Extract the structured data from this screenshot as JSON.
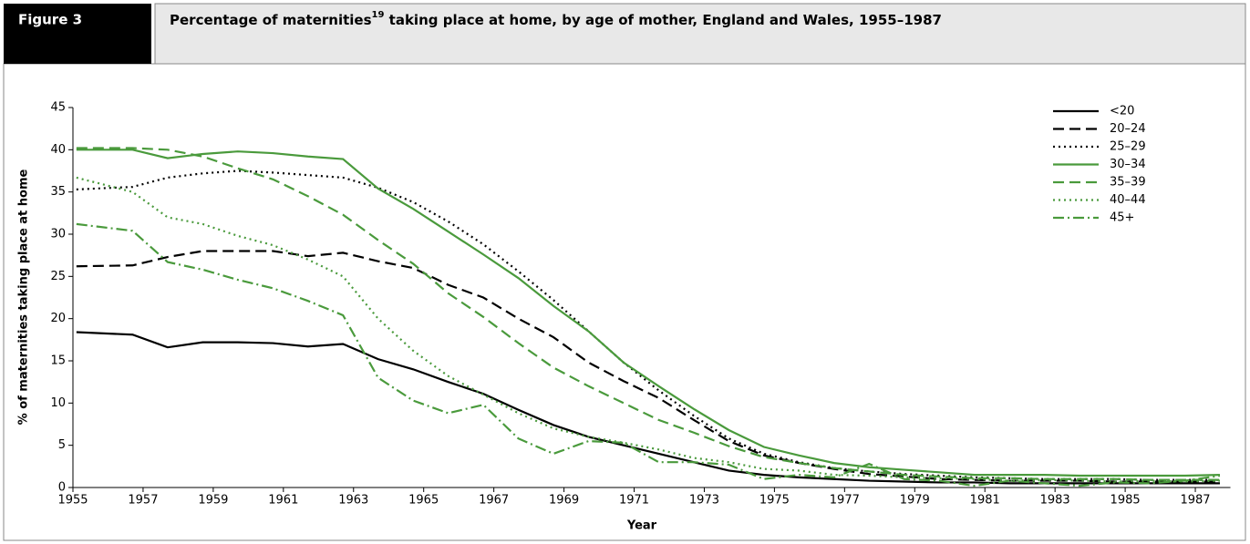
{
  "figure_label": "Figure 3",
  "chart_data": {
    "type": "line",
    "title": "Percentage of maternities",
    "title_superscript": "19",
    "title_rest": " taking place at home, by age of mother, England and Wales, 1955–1987",
    "x_label": "Year",
    "y_label": "% of maternities taking place at home",
    "x": [
      1955.1,
      1956.7,
      1957.7,
      1958.7,
      1959.7,
      1960.7,
      1961.7,
      1962.7,
      1963.7,
      1964.7,
      1965.7,
      1966.7,
      1967.7,
      1968.7,
      1969.7,
      1970.7,
      1971.7,
      1972.7,
      1973.7,
      1974.7,
      1975.7,
      1976.7,
      1977.7,
      1978.7,
      1979.7,
      1980.7,
      1981.7,
      1982.7,
      1983.7,
      1984.7,
      1985.7,
      1986.7,
      1987.7
    ],
    "xlim": [
      1955,
      1988
    ],
    "xticks": [
      1955,
      1957,
      1959,
      1961,
      1963,
      1965,
      1967,
      1969,
      1971,
      1973,
      1975,
      1977,
      1979,
      1981,
      1983,
      1985,
      1987
    ],
    "ylim": [
      0,
      45
    ],
    "yticks": [
      0,
      5,
      10,
      15,
      20,
      25,
      30,
      35,
      40,
      45
    ],
    "legend": "top-right",
    "series": [
      {
        "name": "<20",
        "color": "#000000",
        "dash": "solid",
        "values": [
          18.4,
          18.1,
          16.6,
          17.2,
          17.2,
          17.1,
          16.7,
          17.0,
          15.2,
          14.0,
          12.5,
          11.1,
          9.2,
          7.4,
          6.0,
          5.0,
          4.0,
          3.0,
          2.0,
          1.5,
          1.2,
          1.0,
          0.8,
          0.7,
          0.6,
          0.6,
          0.5,
          0.5,
          0.5,
          0.5,
          0.5,
          0.5,
          0.5
        ]
      },
      {
        "name": "20–24",
        "color": "#000000",
        "dash": "dashed",
        "values": [
          26.2,
          26.3,
          27.3,
          28.0,
          28.0,
          28.0,
          27.4,
          27.8,
          26.8,
          26.0,
          24.0,
          22.5,
          20.0,
          17.8,
          14.8,
          12.6,
          10.6,
          8.0,
          5.5,
          3.8,
          2.9,
          2.2,
          1.6,
          1.3,
          1.0,
          0.9,
          0.8,
          0.8,
          0.8,
          0.7,
          0.7,
          0.7,
          0.7
        ]
      },
      {
        "name": "25–29",
        "color": "#000000",
        "dash": "dotted",
        "values": [
          35.3,
          35.6,
          36.7,
          37.2,
          37.5,
          37.3,
          37.0,
          36.7,
          35.5,
          33.8,
          31.5,
          28.8,
          25.6,
          22.2,
          18.5,
          14.8,
          11.5,
          8.5,
          5.8,
          4.0,
          3.0,
          2.3,
          1.9,
          1.6,
          1.4,
          1.2,
          1.1,
          1.0,
          1.0,
          1.0,
          0.9,
          0.9,
          0.9
        ]
      },
      {
        "name": "30–34",
        "color": "#4a9a3c",
        "dash": "solid",
        "values": [
          40.0,
          40.0,
          39.0,
          39.5,
          39.8,
          39.6,
          39.2,
          38.9,
          35.4,
          33.0,
          30.3,
          27.6,
          24.8,
          21.5,
          18.5,
          14.8,
          12.0,
          9.3,
          6.8,
          4.8,
          3.8,
          2.9,
          2.4,
          2.1,
          1.8,
          1.5,
          1.5,
          1.5,
          1.4,
          1.4,
          1.4,
          1.4,
          1.5
        ]
      },
      {
        "name": "35–39",
        "color": "#4a9a3c",
        "dash": "dashed",
        "values": [
          40.2,
          40.2,
          40.0,
          39.2,
          37.8,
          36.5,
          34.5,
          32.3,
          29.3,
          26.5,
          23.0,
          20.2,
          17.1,
          14.2,
          12.0,
          10.0,
          8.0,
          6.5,
          4.9,
          3.6,
          2.9,
          2.3,
          1.9,
          1.5,
          1.3,
          1.1,
          1.1,
          1.0,
          1.0,
          1.0,
          0.9,
          0.9,
          0.9
        ]
      },
      {
        "name": "40–44",
        "color": "#4a9a3c",
        "dash": "dotted",
        "values": [
          36.7,
          35.0,
          32.0,
          31.2,
          29.8,
          28.7,
          27.0,
          25.0,
          20.0,
          16.2,
          13.2,
          11.0,
          8.8,
          7.0,
          6.0,
          5.3,
          4.5,
          3.5,
          3.0,
          2.2,
          2.0,
          1.5,
          1.4,
          1.2,
          1.1,
          1.0,
          0.8,
          0.9,
          0.8,
          0.7,
          0.8,
          0.7,
          0.8
        ]
      },
      {
        "name": "45+",
        "color": "#4a9a3c",
        "dash": "dashdot",
        "values": [
          31.2,
          30.4,
          26.7,
          25.8,
          24.6,
          23.6,
          22.1,
          20.4,
          13.0,
          10.3,
          8.8,
          9.8,
          5.8,
          4.0,
          5.5,
          5.3,
          3.0,
          3.0,
          2.7,
          1.0,
          1.5,
          1.2,
          2.8,
          1.0,
          0.8,
          0.2,
          0.8,
          0.5,
          0.2,
          0.6,
          0.5,
          0.8,
          1.4
        ]
      }
    ]
  }
}
